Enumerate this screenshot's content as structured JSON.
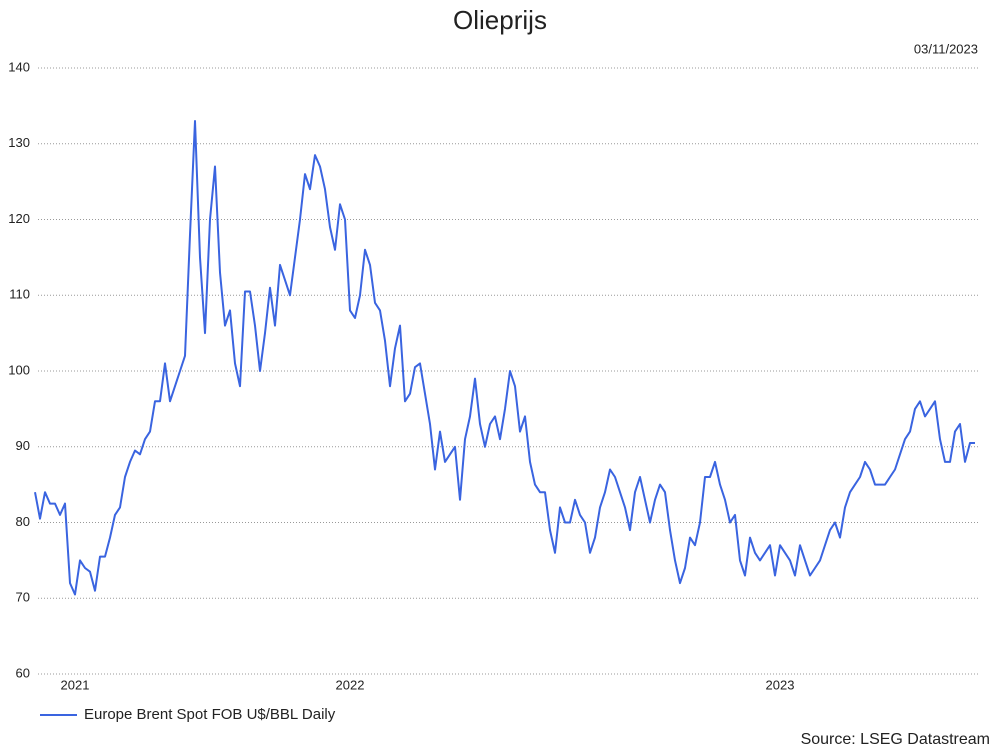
{
  "chart_data": {
    "type": "line",
    "title": "Olieprijs",
    "date": "03/11/2023",
    "source": "Source: LSEG Datastream",
    "series": [
      {
        "name": "Europe Brent Spot FOB U$/BBL Daily",
        "color": "#3a64e0",
        "values": [
          84,
          80.5,
          84,
          82.5,
          82.5,
          81,
          82.5,
          72,
          70.5,
          75,
          74,
          73.5,
          71,
          75.5,
          75.5,
          78,
          81,
          82,
          86,
          88,
          89.5,
          89,
          91,
          92,
          96,
          96,
          101,
          96,
          98,
          100,
          102,
          118,
          133,
          115,
          105,
          120,
          127,
          113,
          106,
          108,
          101,
          98,
          110.5,
          110.5,
          106,
          100,
          105,
          111,
          106,
          114,
          112,
          110,
          115,
          120,
          126,
          124,
          128.5,
          127,
          124,
          119,
          116,
          122,
          120,
          108,
          107,
          110,
          116,
          114,
          109,
          108,
          104,
          98,
          103,
          106,
          96,
          97,
          100.5,
          101,
          97,
          93,
          87,
          92,
          88,
          89,
          90,
          83,
          91,
          94,
          99,
          93,
          90,
          93,
          94,
          91,
          95,
          100,
          98,
          92,
          94,
          88,
          85,
          84,
          84,
          79,
          76,
          82,
          80,
          80,
          83,
          81,
          80,
          76,
          78,
          82,
          84,
          87,
          86,
          84,
          82,
          79,
          84,
          86,
          83,
          80,
          83,
          85,
          84,
          79,
          75,
          72,
          74,
          78,
          77,
          80,
          86,
          86,
          88,
          85,
          83,
          80,
          81,
          75,
          73,
          78,
          76,
          75,
          76,
          77,
          73,
          77,
          76,
          75,
          73,
          77,
          75,
          73,
          74,
          75,
          77,
          79,
          80,
          78,
          82,
          84,
          85,
          86,
          88,
          87,
          85,
          85,
          85,
          86,
          87,
          89,
          91,
          92,
          95,
          96,
          94,
          95,
          96,
          91,
          88,
          88,
          92,
          93,
          88,
          90.5,
          90.5
        ]
      }
    ],
    "xlim": [
      0,
      188
    ],
    "xticks": [
      {
        "value": 8,
        "label": "2021"
      },
      {
        "value": 63,
        "label": "2022"
      },
      {
        "value": 149,
        "label": "2023"
      }
    ],
    "ylim": [
      60,
      140
    ],
    "yticks": [
      60,
      70,
      80,
      90,
      100,
      110,
      120,
      130,
      140
    ],
    "grid": true,
    "legend": "bottom-left"
  }
}
